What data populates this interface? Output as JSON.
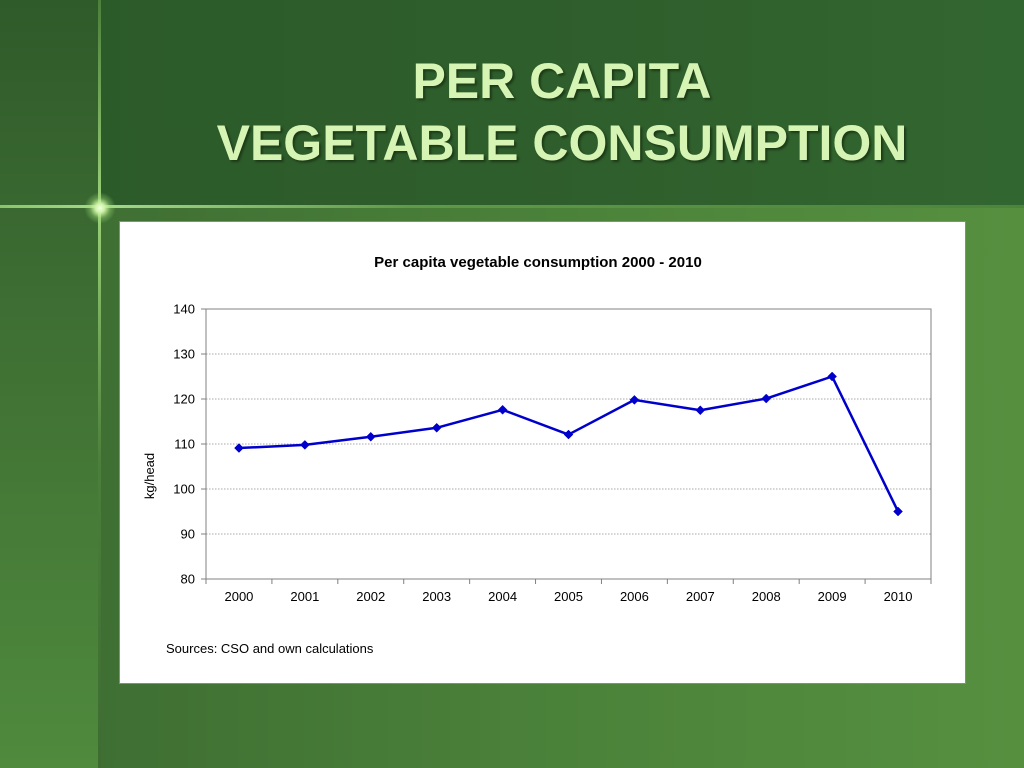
{
  "slide": {
    "title_line1": "PER CAPITA",
    "title_line2": "VEGETABLE CONSUMPTION"
  },
  "colors": {
    "series": "#0000cc",
    "title_text": "#d6f4b4"
  },
  "chart_data": {
    "type": "line",
    "title": "Per capita vegetable consumption 2000 - 2010",
    "xlabel": "",
    "ylabel": "kg/head",
    "categories": [
      "2000",
      "2001",
      "2002",
      "2003",
      "2004",
      "2005",
      "2006",
      "2007",
      "2008",
      "2009",
      "2010"
    ],
    "series": [
      {
        "values": [
          109.1,
          109.8,
          111.6,
          113.6,
          117.6,
          112.1,
          119.8,
          117.5,
          120.1,
          125,
          95
        ]
      }
    ],
    "ylim": [
      80,
      140
    ],
    "yticks": [
      80,
      90,
      100,
      110,
      120,
      130,
      140
    ],
    "grid": true,
    "legend": "none",
    "source_note": "Sources: CSO and own calculations"
  }
}
